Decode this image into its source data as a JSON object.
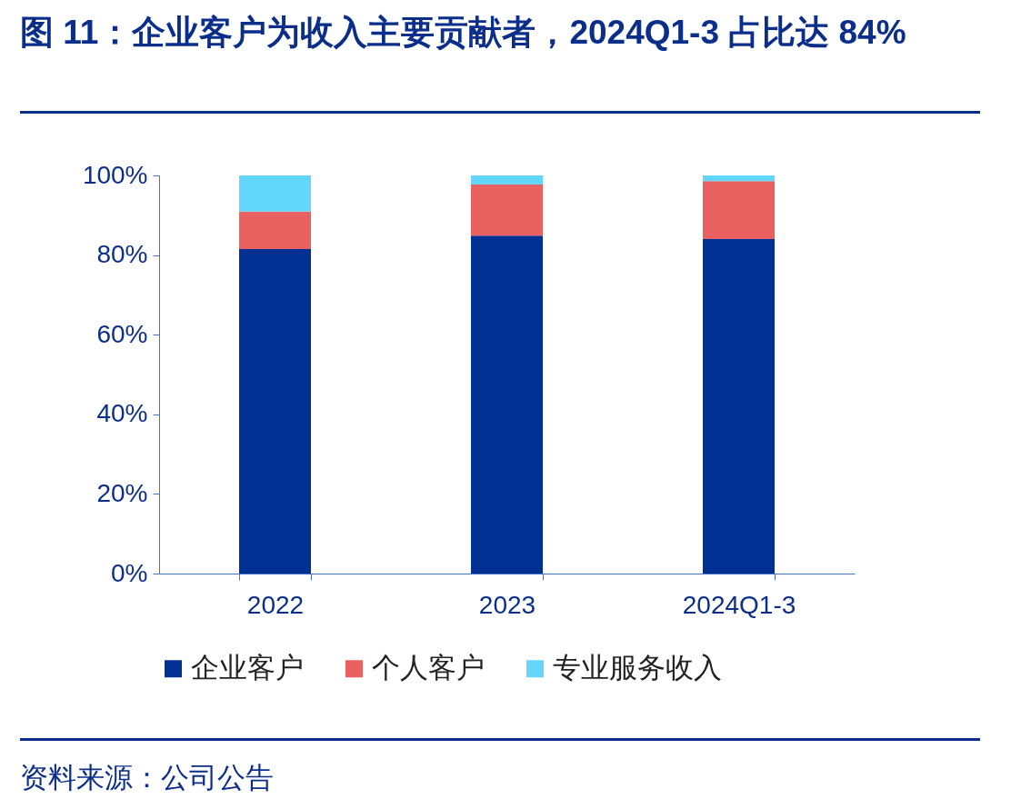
{
  "chart_data": {
    "type": "bar",
    "title": "图 11：企业客户为收入主要贡献者，2024Q1-3 占比达 84%",
    "categories": [
      "2022",
      "2023",
      "2024Q1-3"
    ],
    "stacked": true,
    "series": [
      {
        "name": "企业客户",
        "color": "#003192",
        "values": [
          81.5,
          84.9,
          84.0
        ]
      },
      {
        "name": "个人客户",
        "color": "#e86060",
        "values": [
          9.4,
          12.8,
          14.6
        ]
      },
      {
        "name": "专业服务收入",
        "color": "#63d6fb",
        "values": [
          9.1,
          2.3,
          1.4
        ]
      }
    ],
    "ylim": [
      0,
      100
    ],
    "yticks": [
      {
        "value": 0,
        "label": "0%"
      },
      {
        "value": 20,
        "label": "20%"
      },
      {
        "value": 40,
        "label": "40%"
      },
      {
        "value": 60,
        "label": "60%"
      },
      {
        "value": 80,
        "label": "80%"
      },
      {
        "value": 100,
        "label": "100%"
      }
    ],
    "grid": false,
    "legend": "bottom",
    "annotations": [
      "资料来源：公司公告"
    ]
  }
}
